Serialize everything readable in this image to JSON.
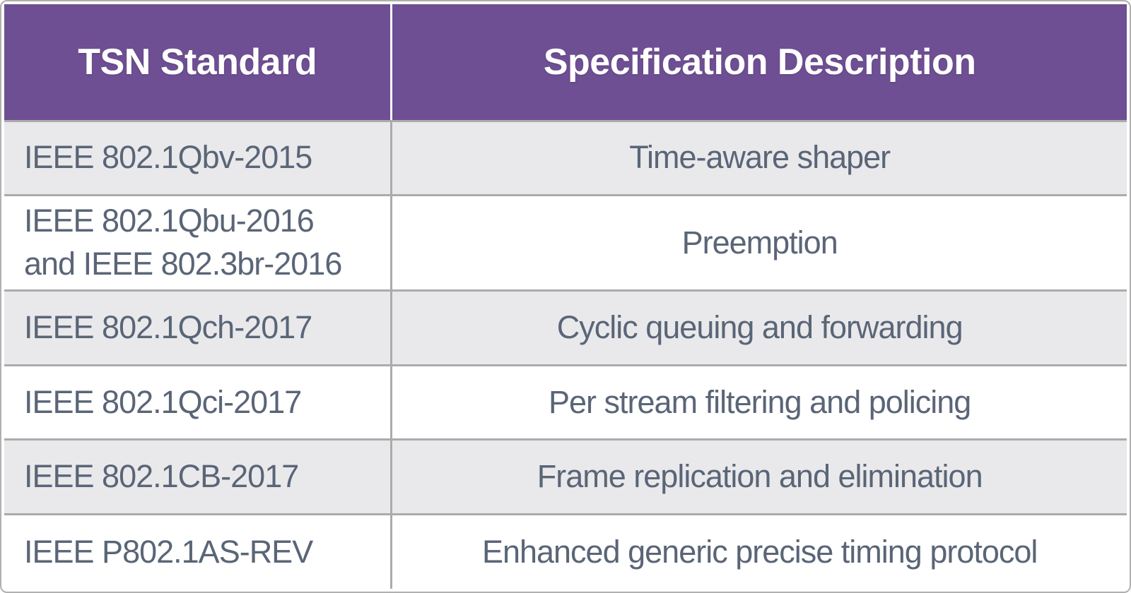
{
  "table": {
    "columns": [
      {
        "label": "TSN Standard"
      },
      {
        "label": "Specification Description"
      }
    ],
    "rows": [
      {
        "standard": "IEEE 802.1Qbv-2015",
        "description": "Time-aware shaper"
      },
      {
        "standard": "IEEE 802.1Qbu-2016\nand IEEE 802.3br-2016",
        "description": "Preemption"
      },
      {
        "standard": "IEEE 802.1Qch-2017",
        "description": "Cyclic queuing and forwarding"
      },
      {
        "standard": "IEEE 802.1Qci-2017",
        "description": "Per stream filtering and policing"
      },
      {
        "standard": "IEEE 802.1CB-2017",
        "description": "Frame replication and elimination"
      },
      {
        "standard": "IEEE P802.1AS-REV",
        "description": "Enhanced generic precise timing protocol"
      }
    ]
  },
  "theme": {
    "header_bg": "#6F4F93",
    "header_text": "#FFFFFF",
    "row_bg": "#FFFFFF",
    "row_alt_bg": "#E9E9EB",
    "body_text": "#5A6577",
    "grid_line": "#ABABAB",
    "outer_border": "#B0B0B0"
  }
}
